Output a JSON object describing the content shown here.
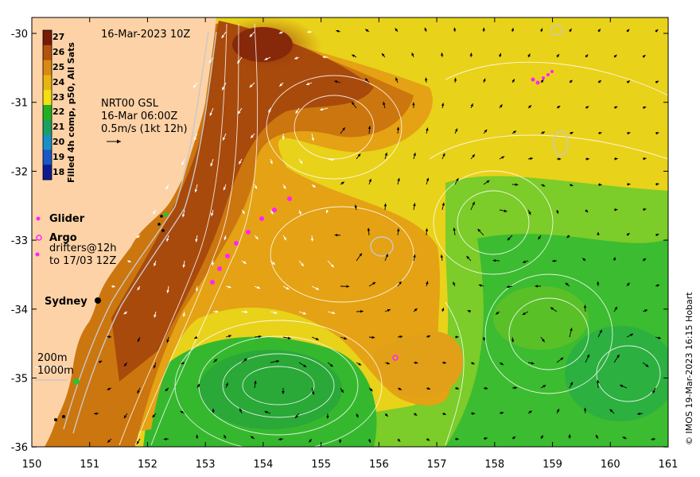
{
  "header": {
    "datetime": "16-Mar-2023 10Z",
    "velocity_source": "NRT00 GSL",
    "velocity_time": "16-Mar 06:00Z",
    "velocity_scale": "0.5m/s (1kt 12h)"
  },
  "colorbar": {
    "title": "Filled 4h comp, p50, All Sats",
    "ticks": [
      "27",
      "26",
      "25",
      "24",
      "23",
      "22",
      "21",
      "20",
      "19",
      "18"
    ],
    "colors": [
      "#7a1a08",
      "#b5520d",
      "#d98a12",
      "#e8b412",
      "#f4e012",
      "#22b022",
      "#1aa060",
      "#1a90c8",
      "#1a58c8",
      "#101a90"
    ]
  },
  "legend": {
    "glider": "Glider",
    "argo": "Argo",
    "drifters_line1": "drifters@12h",
    "drifters_line2": "to 17/03 12Z",
    "city": "Sydney",
    "isobath_200": "200m",
    "isobath_1000": "1000m"
  },
  "axes": {
    "x_ticks": [
      "150",
      "151",
      "152",
      "153",
      "154",
      "155",
      "156",
      "157",
      "158",
      "159",
      "160",
      "161"
    ],
    "y_ticks": [
      "-30",
      "-31",
      "-32",
      "-33",
      "-34",
      "-35",
      "-36"
    ]
  },
  "credit": "© IMOS 19-Mar-2023 16:15 Hobart",
  "colors": {
    "land": "#fdd2a6",
    "warm_core": "#8a2c08",
    "current": "#c0660e",
    "mid": "#e8a614",
    "yellow": "#e6e11a",
    "green": "#3ec236",
    "marker": "#ff22ff"
  }
}
